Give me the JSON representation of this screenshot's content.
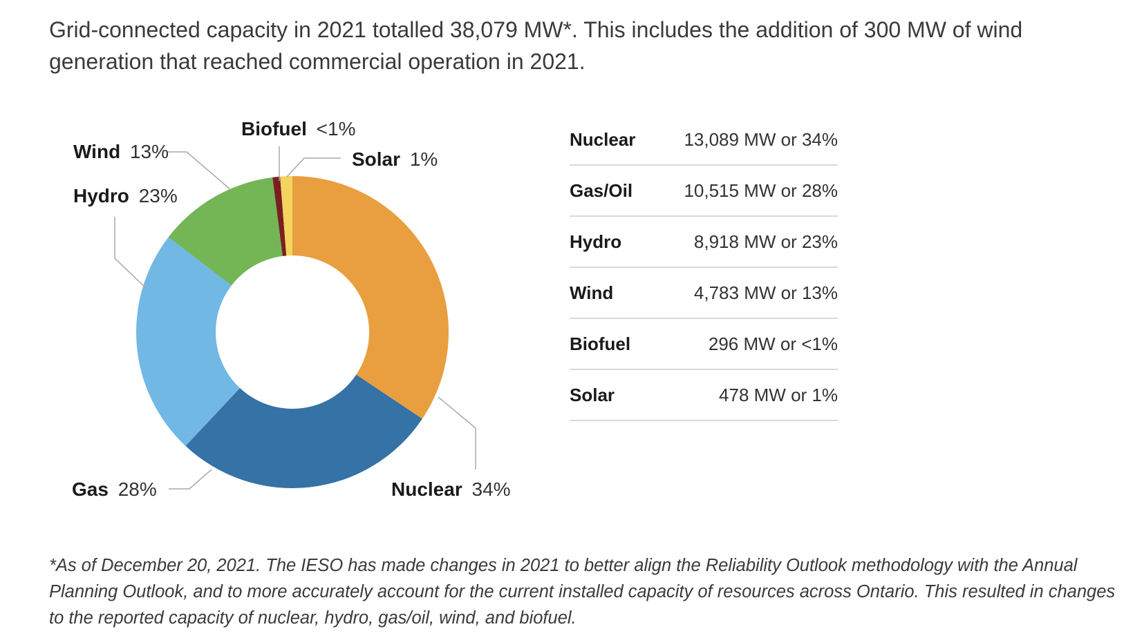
{
  "intro": "Grid-connected capacity in 2021 totalled 38,079 MW*. This includes the addition of 300 MW of wind generation that reached commercial operation in 2021.",
  "chart_data": {
    "type": "pie",
    "donut": true,
    "slices": [
      {
        "name": "Nuclear",
        "label_pct": "34%",
        "value": 13089,
        "color": "#E99E3F"
      },
      {
        "name": "Gas",
        "label_pct": "28%",
        "value": 10515,
        "color": "#3572A6"
      },
      {
        "name": "Hydro",
        "label_pct": "23%",
        "value": 8918,
        "color": "#72B8E4"
      },
      {
        "name": "Wind",
        "label_pct": "13%",
        "value": 4783,
        "color": "#74B556"
      },
      {
        "name": "Biofuel",
        "label_pct": "<1%",
        "value": 296,
        "color": "#7A1F1F"
      },
      {
        "name": "Solar",
        "label_pct": "1%",
        "value": 478,
        "color": "#F4D35E"
      }
    ],
    "labels": {
      "wind": {
        "name": "Wind",
        "pct": "13%"
      },
      "hydro": {
        "name": "Hydro",
        "pct": "23%"
      },
      "biofuel": {
        "name": "Biofuel",
        "pct": "<1%"
      },
      "solar": {
        "name": "Solar",
        "pct": "1%"
      },
      "gas": {
        "name": "Gas",
        "pct": "28%"
      },
      "nuclear": {
        "name": "Nuclear",
        "pct": "34%"
      }
    }
  },
  "table": {
    "rows": [
      {
        "source": "Nuclear",
        "value": "13,089 MW or 34%"
      },
      {
        "source": "Gas/Oil",
        "value": "10,515 MW or 28%"
      },
      {
        "source": "Hydro",
        "value": "8,918 MW or 23%"
      },
      {
        "source": "Wind",
        "value": "4,783 MW or 13%"
      },
      {
        "source": "Biofuel",
        "value": "296 MW or <1%"
      },
      {
        "source": "Solar",
        "value": "478 MW or 1%"
      }
    ]
  },
  "footnote": "*As of December 20, 2021. The IESO has made changes in 2021 to better align the Reliability Outlook methodology with the Annual Planning Outlook, and to more accurately account for the current installed capacity of resources across Ontario. This resulted in changes to the reported capacity of nuclear, hydro, gas/oil, wind, and biofuel."
}
